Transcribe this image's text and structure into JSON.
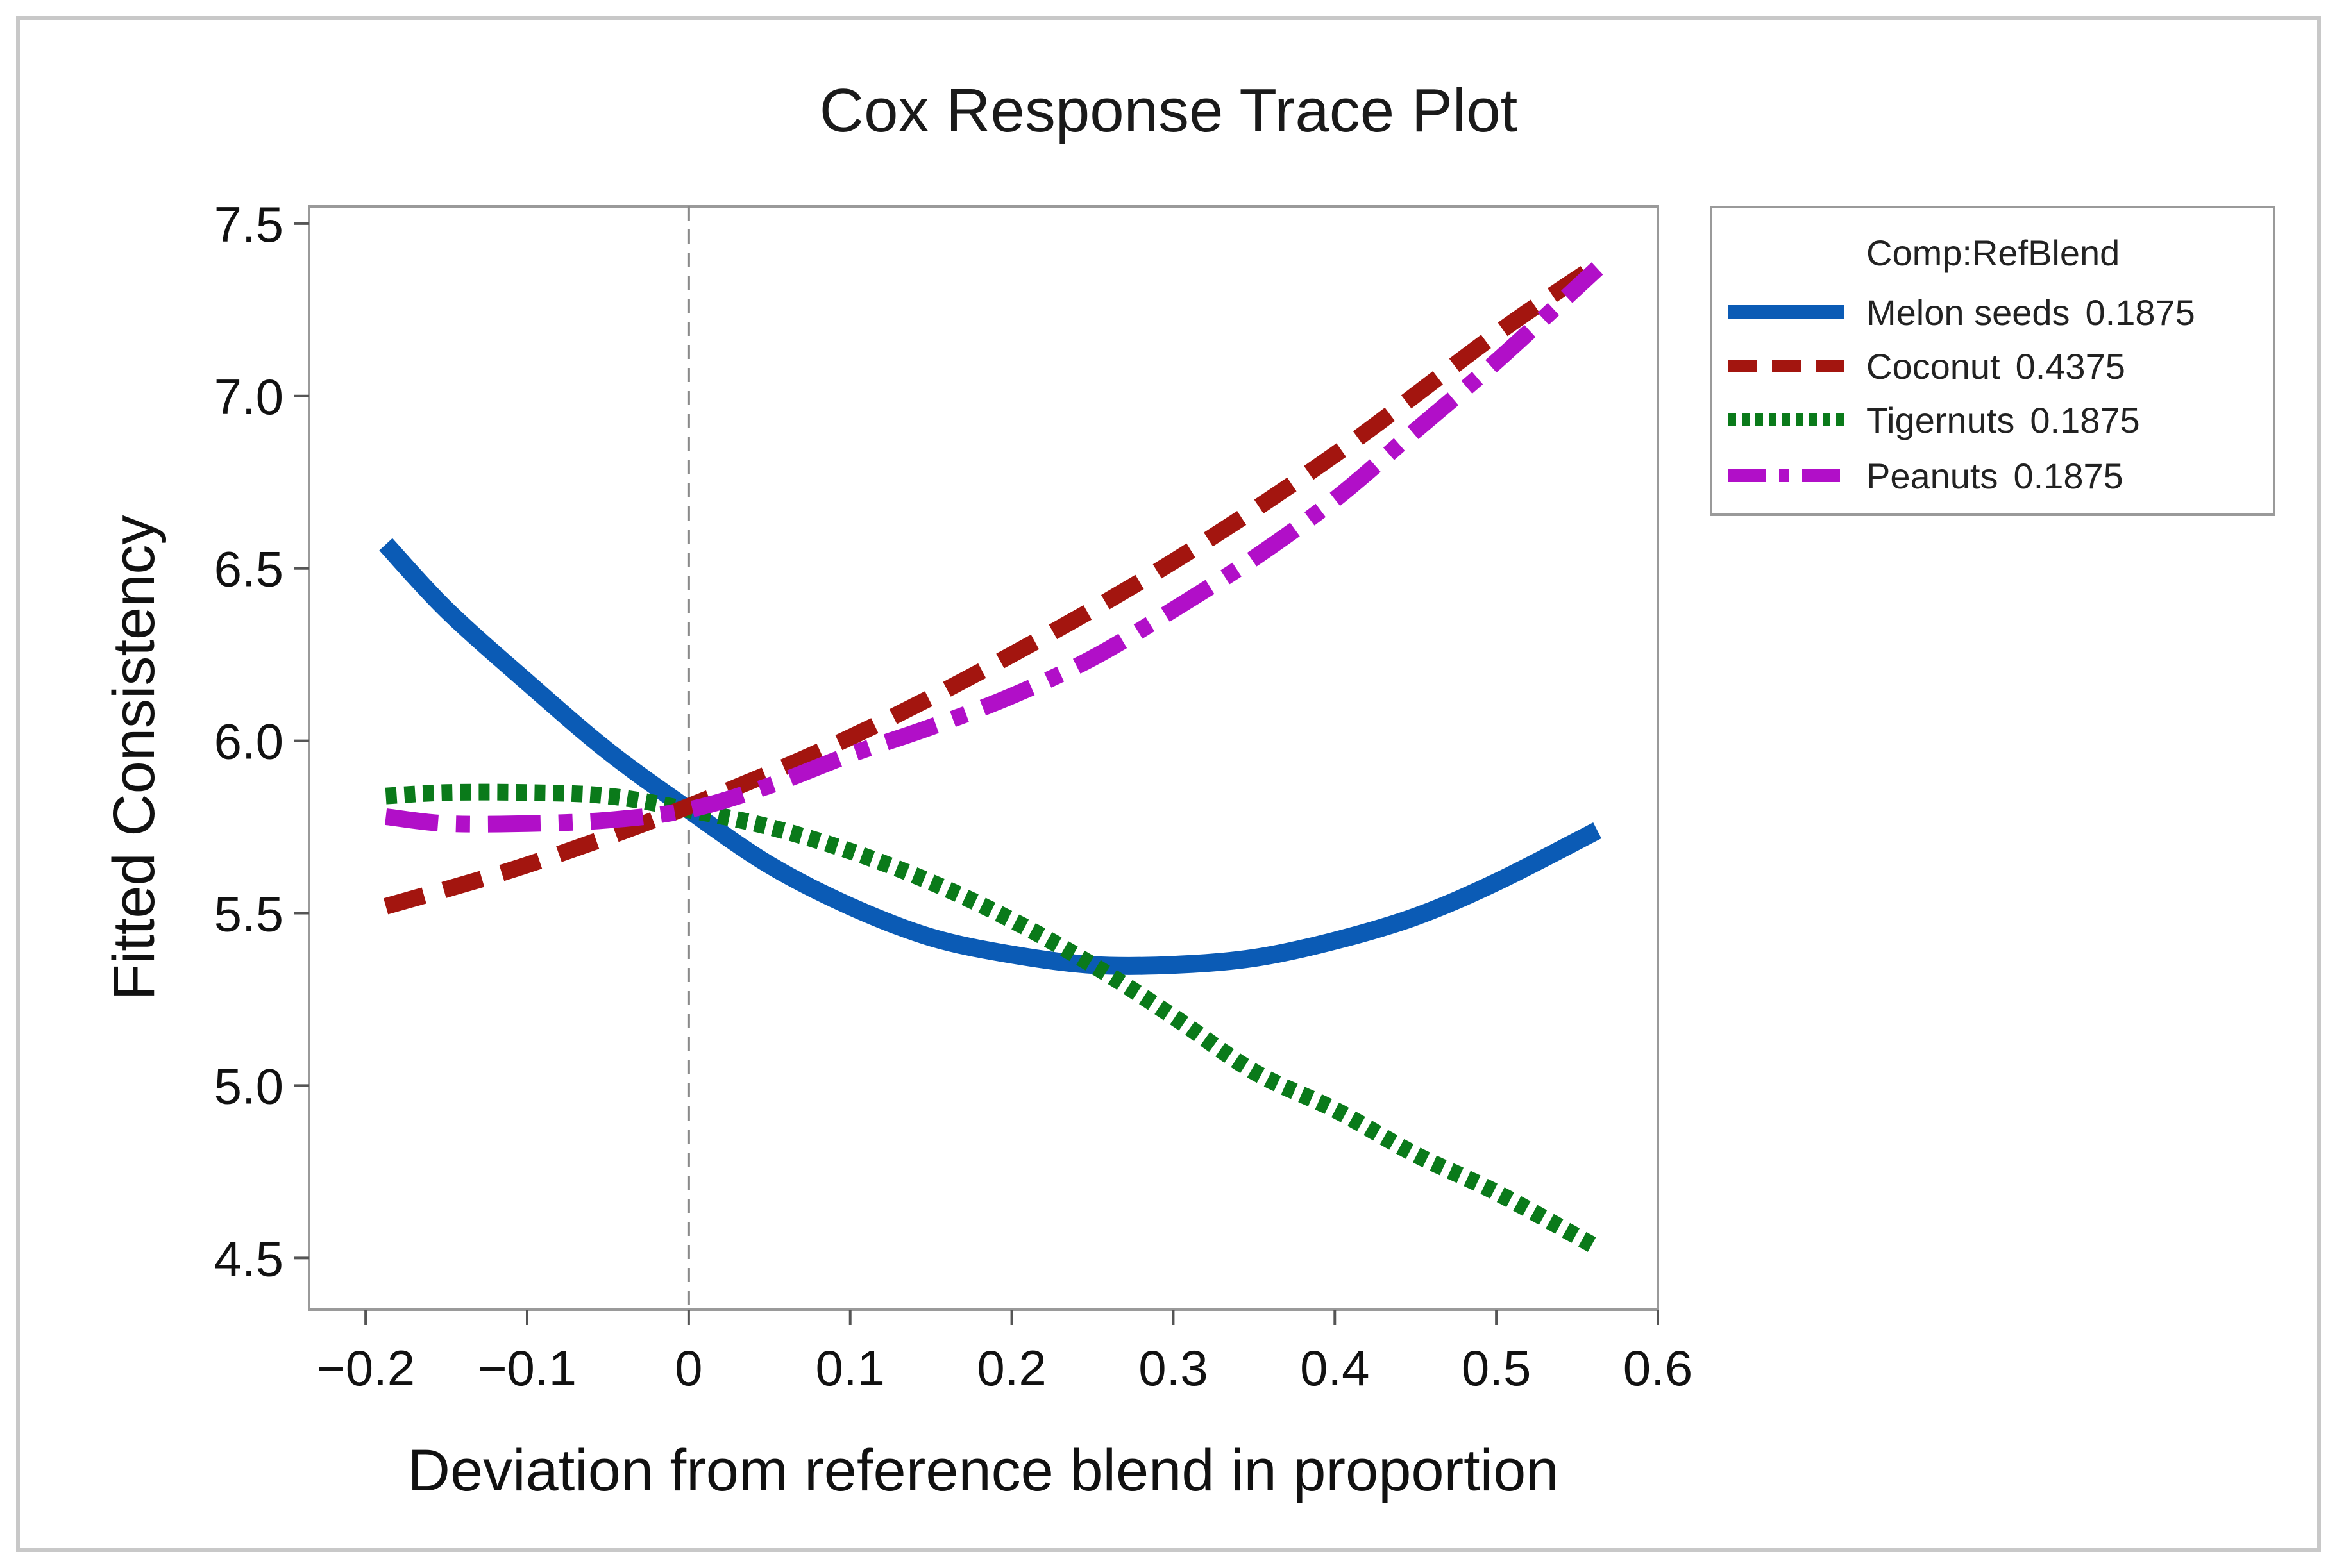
{
  "chart_data": {
    "type": "line",
    "title": "Cox Response Trace Plot",
    "xlabel": "Deviation from reference blend in proportion",
    "ylabel": "Fitted Consistency",
    "xlim": [
      -0.235,
      0.6
    ],
    "ylim": [
      4.35,
      7.55
    ],
    "xticks": [
      -0.2,
      -0.1,
      0,
      0.1,
      0.2,
      0.3,
      0.4,
      0.5,
      0.6
    ],
    "xtick_labels": [
      "−0.2",
      "−0.1",
      "0",
      "0.1",
      "0.2",
      "0.3",
      "0.4",
      "0.5",
      "0.6"
    ],
    "yticks": [
      4.5,
      5.0,
      5.5,
      6.0,
      6.5,
      7.0,
      7.5
    ],
    "ytick_labels": [
      "4.5",
      "5.0",
      "5.5",
      "6.0",
      "6.5",
      "7.0",
      "7.5"
    ],
    "reference_line_x": 0,
    "legend": {
      "title": "Comp:RefBlend",
      "position": "right"
    },
    "series": [
      {
        "name": "Melon seeds",
        "ref_value": "0.1875",
        "color": "#0b5bb5",
        "style": "solid",
        "x": [
          -0.1875,
          -0.15,
          -0.1,
          -0.05,
          0,
          0.05,
          0.1,
          0.15,
          0.2,
          0.25,
          0.3,
          0.35,
          0.4,
          0.45,
          0.5,
          0.5625
        ],
        "y": [
          6.57,
          6.38,
          6.17,
          5.97,
          5.8,
          5.64,
          5.52,
          5.43,
          5.38,
          5.35,
          5.35,
          5.37,
          5.42,
          5.49,
          5.59,
          5.74
        ]
      },
      {
        "name": "Coconut",
        "ref_value": "0.4375",
        "color": "#a3150f",
        "style": "dash",
        "x": [
          -0.1875,
          -0.1,
          0,
          0.1,
          0.2,
          0.3,
          0.4,
          0.5,
          0.5625
        ],
        "y": [
          5.52,
          5.64,
          5.81,
          6.01,
          6.25,
          6.52,
          6.83,
          7.18,
          7.38
        ]
      },
      {
        "name": "Tigernuts",
        "ref_value": "0.1875",
        "color": "#0a7a1a",
        "style": "dot",
        "x": [
          -0.1875,
          -0.15,
          -0.1,
          -0.05,
          0,
          0.05,
          0.1,
          0.15,
          0.2,
          0.25,
          0.3,
          0.35,
          0.4,
          0.45,
          0.5,
          0.5625
        ],
        "y": [
          5.84,
          5.85,
          5.85,
          5.84,
          5.8,
          5.75,
          5.68,
          5.59,
          5.48,
          5.35,
          5.2,
          5.04,
          4.93,
          4.8,
          4.69,
          4.53
        ]
      },
      {
        "name": "Peanuts",
        "ref_value": "0.1875",
        "color": "#b10fc8",
        "style": "dashdot",
        "x": [
          -0.1875,
          -0.15,
          -0.1,
          -0.05,
          0,
          0.05,
          0.1,
          0.15,
          0.2,
          0.25,
          0.3,
          0.35,
          0.4,
          0.45,
          0.5,
          0.5625
        ],
        "y": [
          5.78,
          5.76,
          5.76,
          5.77,
          5.8,
          5.87,
          5.96,
          6.04,
          6.13,
          6.24,
          6.38,
          6.53,
          6.7,
          6.9,
          7.1,
          7.37
        ]
      }
    ]
  }
}
